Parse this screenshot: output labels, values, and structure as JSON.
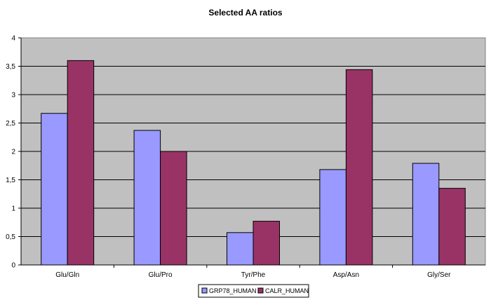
{
  "chart_data": {
    "type": "bar",
    "title": "Selected AA ratios",
    "xlabel": "",
    "ylabel": "",
    "categories": [
      "Glu/Gln",
      "Glu/Pro",
      "Tyr/Phe",
      "Asp/Asn",
      "Gly/Ser"
    ],
    "series": [
      {
        "name": "GRP78_HUMAN",
        "color": "#9999ff",
        "values": [
          2.67,
          2.37,
          0.57,
          1.68,
          1.79
        ]
      },
      {
        "name": "CALR_HUMAN",
        "color": "#993366",
        "values": [
          3.6,
          2.0,
          0.77,
          3.44,
          1.35
        ]
      }
    ],
    "ylim": [
      0,
      4
    ],
    "yticks": [
      "0",
      "0,5",
      "1",
      "1,5",
      "2",
      "2,5",
      "3",
      "3,5",
      "4"
    ],
    "grid": true,
    "plot_background": "#c0c0c0",
    "legend_position": "bottom"
  }
}
